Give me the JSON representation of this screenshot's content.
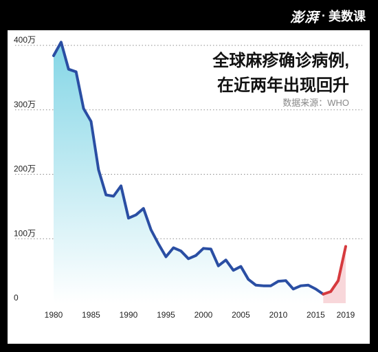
{
  "brand": {
    "logo": "澎湃",
    "separator": "·",
    "name": "美数课"
  },
  "colors": {
    "line": "#2a4ea3",
    "recent_line": "#d63a3e",
    "area_top": "#84d6e6",
    "area_bottom": "#ffffff",
    "recent_area": "#f3b7bb",
    "grid": "#8a8a8a"
  },
  "chart_data": {
    "type": "area",
    "title_lines": [
      "全球麻疹确诊病例,",
      "在近两年出现回升"
    ],
    "source": "数据来源：WHO",
    "y_tick_labels": [
      "0",
      "100万",
      "200万",
      "300万",
      "400万"
    ],
    "y_ticks": [
      0,
      100,
      200,
      300,
      400
    ],
    "x_tick_labels": [
      "1980",
      "1985",
      "1990",
      "1995",
      "2000",
      "2005",
      "2010",
      "2015",
      "2019"
    ],
    "x_ticks": [
      1980,
      1985,
      1990,
      1995,
      2000,
      2005,
      2010,
      2015,
      2019
    ],
    "xlim": [
      1980,
      2019
    ],
    "ylim": [
      0,
      400
    ],
    "y_unit": "万",
    "grid": true,
    "series": [
      {
        "x": [
          1980,
          1981,
          1982,
          1983,
          1984,
          1985,
          1986,
          1987,
          1988,
          1989,
          1990,
          1991,
          1992,
          1993,
          1994,
          1995,
          1996,
          1997,
          1998,
          1999,
          2000,
          2001,
          2002,
          2003,
          2004,
          2005,
          2006,
          2007,
          2008,
          2009,
          2010,
          2011,
          2012,
          2013,
          2014,
          2015,
          2016
        ],
        "values": [
          384,
          405,
          363,
          359,
          302,
          282,
          207,
          168,
          166,
          182,
          132,
          137,
          147,
          114,
          92,
          72,
          86,
          81,
          69,
          74,
          85,
          84,
          58,
          67,
          51,
          57,
          37,
          28,
          27,
          27,
          34,
          35,
          22,
          27,
          28,
          22,
          14
        ]
      },
      {
        "x": [
          2016,
          2017,
          2018,
          2019
        ],
        "values": [
          14,
          18,
          35,
          88
        ]
      }
    ]
  }
}
